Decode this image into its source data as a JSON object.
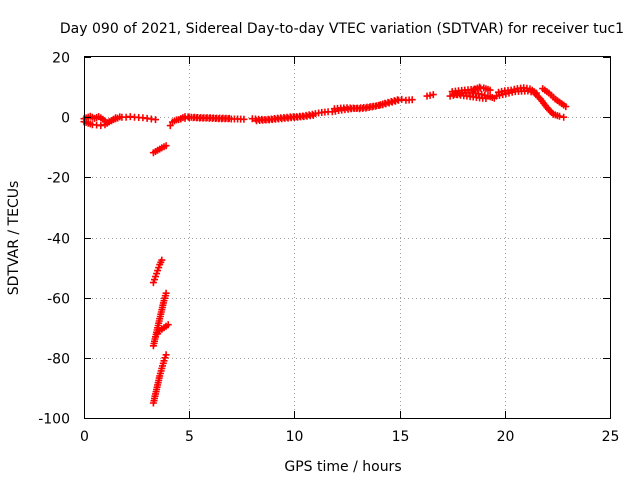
{
  "chart_data": {
    "type": "scatter",
    "title": "Day 090 of 2021, Sidereal Day-to-day VTEC variation (SDTVAR) for receiver tuc1",
    "xlabel": "GPS time / hours",
    "ylabel": "SDTVAR / TECUs",
    "xlim": [
      0,
      25
    ],
    "ylim": [
      -100,
      20
    ],
    "xticks": [
      0,
      5,
      10,
      15,
      20,
      25
    ],
    "yticks": [
      -100,
      -80,
      -60,
      -40,
      -20,
      0,
      20
    ],
    "grid": true,
    "marker": "+",
    "color": "#ff0000",
    "series": [
      {
        "name": "SDTVAR",
        "segments": [
          [
            [
              0.0,
              -1.5
            ],
            [
              0.2,
              -2.0
            ],
            [
              0.4,
              -2.5
            ],
            [
              0.6,
              -2.6
            ],
            [
              0.8,
              -2.8
            ],
            [
              1.0,
              -2.5
            ],
            [
              1.2,
              -1.5
            ],
            [
              1.4,
              -0.8
            ],
            [
              1.6,
              -0.3
            ],
            [
              1.8,
              0.0
            ],
            [
              2.0,
              0.0
            ],
            [
              2.2,
              0.2
            ],
            [
              2.4,
              0.0
            ],
            [
              2.6,
              -0.1
            ],
            [
              2.8,
              -0.2
            ],
            [
              3.0,
              -0.4
            ],
            [
              3.2,
              -0.6
            ],
            [
              3.4,
              -0.8
            ]
          ],
          [
            [
              0.0,
              -0.5
            ],
            [
              0.3,
              0.3
            ],
            [
              0.5,
              -0.4
            ],
            [
              0.7,
              0.2
            ],
            [
              0.9,
              -0.7
            ],
            [
              1.1,
              -1.8
            ],
            [
              1.3,
              -1.2
            ],
            [
              1.5,
              -0.2
            ],
            [
              1.7,
              0.1
            ]
          ],
          [
            [
              3.3,
              -11.8
            ],
            [
              3.5,
              -11.0
            ],
            [
              3.7,
              -10.2
            ],
            [
              3.9,
              -9.5
            ]
          ],
          [
            [
              3.3,
              -55
            ],
            [
              3.4,
              -53
            ],
            [
              3.5,
              -51
            ],
            [
              3.6,
              -49
            ],
            [
              3.7,
              -47.5
            ]
          ],
          [
            [
              3.3,
              -76
            ],
            [
              3.4,
              -73
            ],
            [
              3.5,
              -70
            ],
            [
              3.6,
              -67
            ],
            [
              3.7,
              -64
            ],
            [
              3.8,
              -61
            ],
            [
              3.9,
              -58.5
            ]
          ],
          [
            [
              3.4,
              -73
            ],
            [
              3.5,
              -72
            ],
            [
              3.6,
              -71
            ],
            [
              3.8,
              -70
            ],
            [
              4.0,
              -69
            ]
          ],
          [
            [
              3.3,
              -95
            ],
            [
              3.4,
              -92
            ],
            [
              3.5,
              -89
            ],
            [
              3.6,
              -86
            ],
            [
              3.7,
              -83.5
            ],
            [
              3.8,
              -81
            ],
            [
              3.9,
              -79
            ]
          ],
          [
            [
              4.1,
              -2.8
            ],
            [
              4.2,
              -1.6
            ],
            [
              4.4,
              -0.9
            ],
            [
              4.6,
              -0.6
            ],
            [
              4.8,
              -0.4
            ],
            [
              5.0,
              -0.2
            ],
            [
              5.2,
              -0.2
            ],
            [
              5.5,
              -0.3
            ],
            [
              5.8,
              -0.3
            ],
            [
              6.1,
              -0.4
            ],
            [
              6.4,
              -0.5
            ],
            [
              6.7,
              -0.5
            ],
            [
              7.0,
              -0.6
            ],
            [
              7.3,
              -0.6
            ],
            [
              7.6,
              -0.7
            ]
          ],
          [
            [
              4.5,
              -0.8
            ],
            [
              4.8,
              0.2
            ],
            [
              5.1,
              0.0
            ],
            [
              5.4,
              -0.1
            ],
            [
              5.7,
              -0.2
            ],
            [
              6.0,
              -0.2
            ],
            [
              6.3,
              -0.3
            ],
            [
              6.6,
              -0.3
            ],
            [
              6.9,
              -0.4
            ]
          ],
          [
            [
              8.0,
              -0.5
            ],
            [
              8.3,
              -0.7
            ],
            [
              8.6,
              -0.8
            ],
            [
              8.9,
              -0.6
            ],
            [
              9.2,
              -0.3
            ],
            [
              9.5,
              -0.1
            ],
            [
              9.8,
              0.1
            ],
            [
              10.1,
              0.2
            ],
            [
              10.4,
              0.4
            ],
            [
              10.7,
              0.8
            ],
            [
              11.0,
              1.2
            ],
            [
              11.3,
              1.6
            ],
            [
              11.6,
              1.8
            ]
          ],
          [
            [
              8.2,
              -1.2
            ],
            [
              8.5,
              -1.0
            ],
            [
              8.8,
              -0.9
            ],
            [
              9.1,
              -0.7
            ],
            [
              9.4,
              -0.5
            ],
            [
              9.7,
              -0.3
            ],
            [
              10.0,
              -0.1
            ],
            [
              10.3,
              0.1
            ],
            [
              10.6,
              0.3
            ],
            [
              10.9,
              0.6
            ]
          ],
          [
            [
              11.8,
              1.8
            ],
            [
              12.1,
              2.2
            ],
            [
              12.4,
              2.5
            ],
            [
              12.7,
              2.8
            ],
            [
              13.0,
              3.0
            ],
            [
              13.3,
              3.2
            ],
            [
              13.6,
              3.5
            ],
            [
              13.9,
              3.8
            ],
            [
              14.2,
              4.1
            ],
            [
              14.5,
              4.7
            ],
            [
              14.8,
              5.3
            ],
            [
              15.1,
              5.9
            ]
          ],
          [
            [
              11.9,
              2.8
            ],
            [
              12.2,
              3.0
            ],
            [
              12.5,
              3.1
            ],
            [
              12.8,
              3.0
            ],
            [
              13.1,
              2.8
            ],
            [
              13.4,
              3.0
            ],
            [
              13.7,
              3.4
            ],
            [
              14.0,
              3.9
            ],
            [
              14.3,
              4.6
            ],
            [
              14.6,
              5.2
            ],
            [
              14.9,
              5.8
            ]
          ],
          [
            [
              15.3,
              5.6
            ],
            [
              15.6,
              5.8
            ]
          ],
          [
            [
              16.3,
              7.0
            ],
            [
              16.6,
              7.5
            ]
          ],
          [
            [
              17.4,
              7.0
            ],
            [
              17.7,
              7.5
            ],
            [
              18.0,
              8.0
            ],
            [
              18.3,
              8.2
            ],
            [
              18.6,
              8.0
            ],
            [
              18.9,
              7.6
            ],
            [
              19.2,
              7.0
            ],
            [
              19.5,
              6.3
            ]
          ],
          [
            [
              17.5,
              8.5
            ],
            [
              17.8,
              8.8
            ],
            [
              18.1,
              9.0
            ],
            [
              18.4,
              9.2
            ],
            [
              18.7,
              9.5
            ],
            [
              19.0,
              9.7
            ],
            [
              19.3,
              9.0
            ]
          ],
          [
            [
              17.6,
              7.6
            ],
            [
              17.9,
              7.3
            ],
            [
              18.2,
              7.0
            ],
            [
              18.5,
              6.7
            ],
            [
              18.8,
              6.4
            ],
            [
              19.1,
              6.2
            ]
          ],
          [
            [
              18.5,
              9.0
            ],
            [
              18.8,
              10.0
            ]
          ],
          [
            [
              19.6,
              7.0
            ],
            [
              19.9,
              7.5
            ],
            [
              20.2,
              8.0
            ],
            [
              20.5,
              8.5
            ],
            [
              20.8,
              8.6
            ],
            [
              21.1,
              8.7
            ],
            [
              21.4,
              8.1
            ],
            [
              21.7,
              6.0
            ],
            [
              22.0,
              3.2
            ],
            [
              22.3,
              1.0
            ],
            [
              22.6,
              0.3
            ],
            [
              22.8,
              0.0
            ]
          ],
          [
            [
              19.7,
              8.3
            ],
            [
              20.0,
              8.8
            ],
            [
              20.3,
              9.0
            ],
            [
              20.6,
              9.5
            ],
            [
              20.9,
              9.8
            ],
            [
              21.2,
              9.4
            ],
            [
              21.5,
              8.0
            ]
          ],
          [
            [
              21.8,
              9.5
            ],
            [
              22.1,
              8.0
            ],
            [
              22.4,
              6.0
            ],
            [
              22.7,
              4.5
            ],
            [
              22.9,
              3.5
            ]
          ]
        ]
      }
    ]
  }
}
